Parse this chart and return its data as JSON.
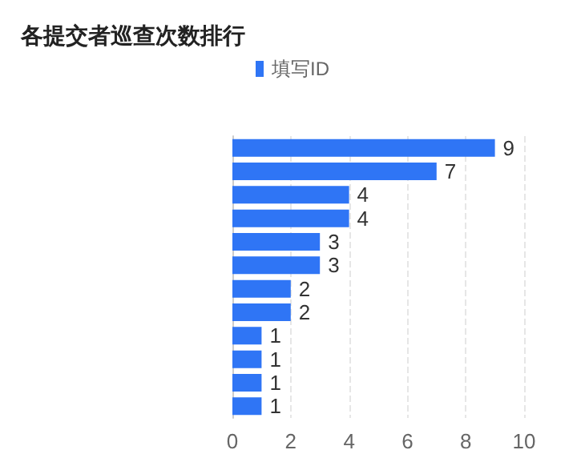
{
  "chart_data": {
    "type": "bar",
    "orientation": "horizontal",
    "title": "各提交者巡查次数排行",
    "categories": [
      null,
      null,
      null,
      null,
      null,
      null,
      null,
      null,
      null,
      null,
      null,
      null
    ],
    "series": [
      {
        "name": "填写ID",
        "color": "#2f75f5",
        "values": [
          9,
          7,
          4,
          4,
          3,
          3,
          2,
          2,
          1,
          1,
          1,
          1
        ]
      }
    ],
    "xlim": [
      0,
      10
    ],
    "xticks": [
      0,
      2,
      4,
      6,
      8,
      10
    ],
    "grid": "x",
    "legend": "top",
    "data_labels": true
  }
}
